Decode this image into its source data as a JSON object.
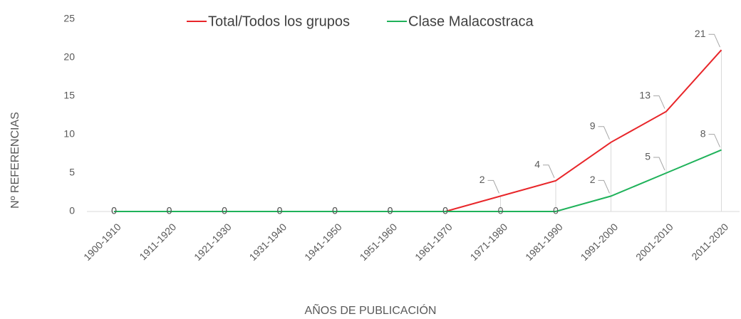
{
  "chart_data": {
    "type": "line",
    "x_label": "AÑOS DE PUBLICACIÓN",
    "y_label": "Nº REFERENCIAS",
    "categories": [
      "1900-1910",
      "1911-1920",
      "1921-1930",
      "1931-1940",
      "1941-1950",
      "1951-1960",
      "1961-1970",
      "1971-1980",
      "1981-1990",
      "1991-2000",
      "2001-2010",
      "2011-2020"
    ],
    "series": [
      {
        "name": "Total/Todos los grupos",
        "color": "#e8262a",
        "values": [
          0,
          0,
          0,
          0,
          0,
          0,
          0,
          2,
          4,
          9,
          13,
          21
        ]
      },
      {
        "name": "Clase Malacostraca",
        "color": "#1fb25a",
        "values": [
          0,
          0,
          0,
          0,
          0,
          0,
          0,
          0,
          0,
          2,
          5,
          8
        ]
      }
    ],
    "ylim": [
      0,
      25
    ],
    "yticks": [
      0,
      5,
      10,
      15,
      20,
      25
    ],
    "legend": "top"
  }
}
